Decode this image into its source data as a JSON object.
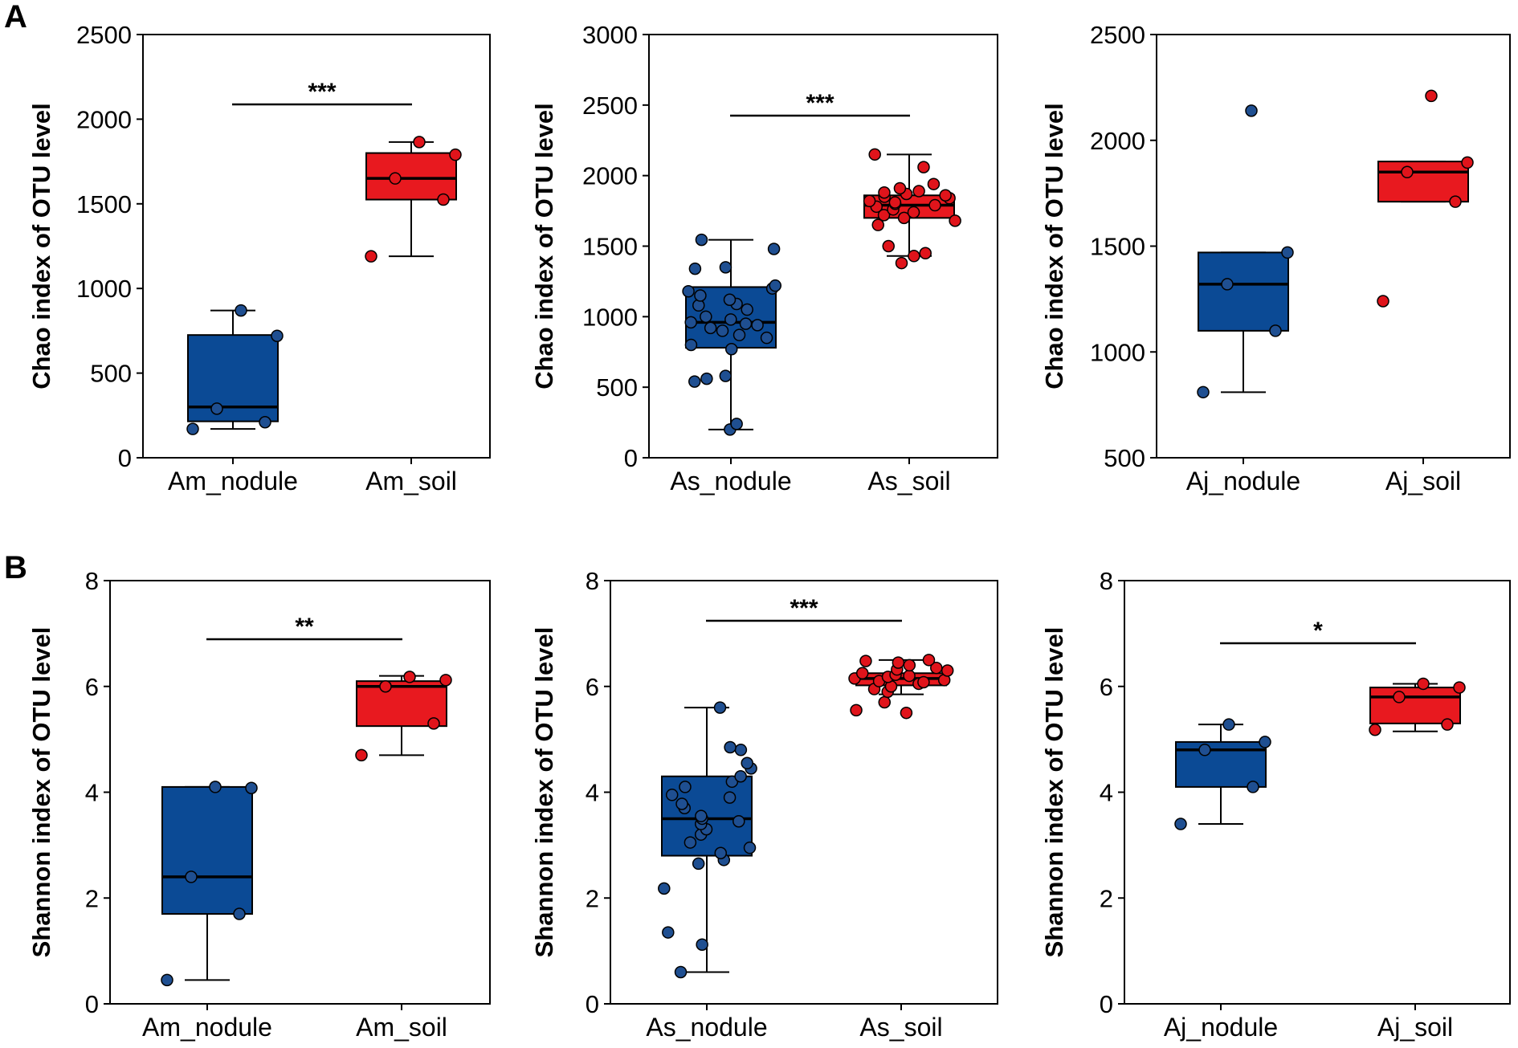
{
  "figure": {
    "panel_labels": [
      "A",
      "B"
    ],
    "colors": {
      "nodule": "#0b4a95",
      "soil": "#e8191f",
      "nodule_point": "#1f4f91",
      "soil_point": "#e0141b"
    }
  },
  "chart_data": [
    {
      "type": "box",
      "panel": "A",
      "ylabel": "Chao index of OTU level",
      "ylim": [
        0,
        2500
      ],
      "yticks": [
        0,
        500,
        1000,
        1500,
        2000,
        2500
      ],
      "categories": [
        "Am_nodule",
        "Am_soil"
      ],
      "significance": "***",
      "boxes": [
        {
          "group": "Am_nodule",
          "min": 170,
          "q1": 215,
          "median": 300,
          "q3": 725,
          "max": 870,
          "points": [
            170,
            210,
            290,
            720,
            870
          ]
        },
        {
          "group": "Am_soil",
          "min": 1190,
          "q1": 1525,
          "median": 1650,
          "q3": 1800,
          "max": 1865,
          "points": [
            1190,
            1525,
            1650,
            1790,
            1865
          ]
        }
      ]
    },
    {
      "type": "box",
      "panel": "A",
      "ylabel": "Chao index of OTU level",
      "ylim": [
        0,
        3000
      ],
      "yticks": [
        0,
        500,
        1000,
        1500,
        2000,
        2500,
        3000
      ],
      "categories": [
        "As_nodule",
        "As_soil"
      ],
      "significance": "***",
      "boxes": [
        {
          "group": "As_nodule",
          "min": 200,
          "q1": 780,
          "median": 960,
          "q3": 1210,
          "max": 1545,
          "points": [
            200,
            240,
            540,
            560,
            580,
            770,
            800,
            850,
            870,
            900,
            920,
            940,
            950,
            960,
            980,
            1000,
            1050,
            1080,
            1090,
            1120,
            1150,
            1180,
            1200,
            1220,
            1340,
            1350,
            1480,
            1545
          ]
        }
      ],
      "boxes_soil": [
        {
          "group": "As_soil",
          "min": 1430,
          "q1": 1700,
          "median": 1790,
          "q3": 1860,
          "max": 2150,
          "points": [
            1380,
            1430,
            1450,
            1500,
            1650,
            1680,
            1700,
            1720,
            1740,
            1760,
            1780,
            1790,
            1800,
            1810,
            1820,
            1840,
            1850,
            1860,
            1870,
            1880,
            1890,
            1910,
            1940,
            2060,
            2150
          ]
        }
      ]
    },
    {
      "type": "box",
      "panel": "A",
      "ylabel": "Chao index of OTU level",
      "ylim": [
        500,
        2500
      ],
      "yticks": [
        500,
        1000,
        1500,
        2000,
        2500
      ],
      "categories": [
        "Aj_nodule",
        "Aj_soil"
      ],
      "significance": "",
      "boxes": [
        {
          "group": "Aj_nodule",
          "min": 810,
          "q1": 1100,
          "median": 1320,
          "q3": 1470,
          "max": 1470,
          "points": [
            810,
            1100,
            1320,
            1470,
            2140
          ]
        },
        {
          "group": "Aj_soil",
          "min": 1710,
          "q1": 1710,
          "median": 1850,
          "q3": 1900,
          "max": 1900,
          "points": [
            1240,
            1710,
            1850,
            1895,
            2210
          ]
        }
      ]
    },
    {
      "type": "box",
      "panel": "B",
      "ylabel": "Shannon index of OTU level",
      "ylim": [
        0,
        8
      ],
      "yticks": [
        0,
        2,
        4,
        6,
        8
      ],
      "categories": [
        "Am_nodule",
        "Am_soil"
      ],
      "significance": "**",
      "boxes": [
        {
          "group": "Am_nodule",
          "min": 0.45,
          "q1": 1.7,
          "median": 2.4,
          "q3": 4.1,
          "max": 4.1,
          "points": [
            0.45,
            1.7,
            2.4,
            4.08,
            4.1
          ]
        },
        {
          "group": "Am_soil",
          "min": 4.7,
          "q1": 5.25,
          "median": 6.0,
          "q3": 6.1,
          "max": 6.2,
          "points": [
            4.7,
            5.3,
            6.0,
            6.12,
            6.18
          ]
        }
      ]
    },
    {
      "type": "box",
      "panel": "B",
      "ylabel": "Shannon index of OTU level",
      "ylim": [
        0,
        8
      ],
      "yticks": [
        0,
        2,
        4,
        6,
        8
      ],
      "categories": [
        "As_nodule",
        "As_soil"
      ],
      "significance": "***",
      "boxes": [
        {
          "group": "As_nodule",
          "min": 0.6,
          "q1": 2.8,
          "median": 3.5,
          "q3": 4.3,
          "max": 5.6,
          "points": [
            0.6,
            1.12,
            1.35,
            2.18,
            2.65,
            2.72,
            2.85,
            2.95,
            3.05,
            3.2,
            3.3,
            3.4,
            3.45,
            3.5,
            3.55,
            3.7,
            3.78,
            3.9,
            3.95,
            4.1,
            4.2,
            4.3,
            4.45,
            4.55,
            4.8,
            4.85,
            5.6
          ]
        },
        {
          "group": "As_soil",
          "min": 5.85,
          "q1": 6.02,
          "median": 6.15,
          "q3": 6.25,
          "max": 6.5,
          "points": [
            5.5,
            5.55,
            5.7,
            5.9,
            5.95,
            6.0,
            6.05,
            6.08,
            6.1,
            6.12,
            6.15,
            6.18,
            6.2,
            6.22,
            6.25,
            6.3,
            6.32,
            6.35,
            6.4,
            6.45,
            6.48,
            6.5
          ]
        }
      ]
    },
    {
      "type": "box",
      "panel": "B",
      "ylabel": "Shannon index of OTU level",
      "ylim": [
        0,
        8
      ],
      "yticks": [
        0,
        2,
        4,
        6,
        8
      ],
      "categories": [
        "Aj_nodule",
        "Aj_soil"
      ],
      "significance": "*",
      "boxes": [
        {
          "group": "Aj_nodule",
          "min": 3.4,
          "q1": 4.1,
          "median": 4.8,
          "q3": 4.95,
          "max": 5.28,
          "points": [
            3.4,
            4.1,
            4.8,
            4.95,
            5.28
          ]
        },
        {
          "group": "Aj_soil",
          "min": 5.15,
          "q1": 5.3,
          "median": 5.8,
          "q3": 5.98,
          "max": 6.05,
          "points": [
            5.18,
            5.28,
            5.8,
            5.98,
            6.05
          ]
        }
      ]
    }
  ]
}
